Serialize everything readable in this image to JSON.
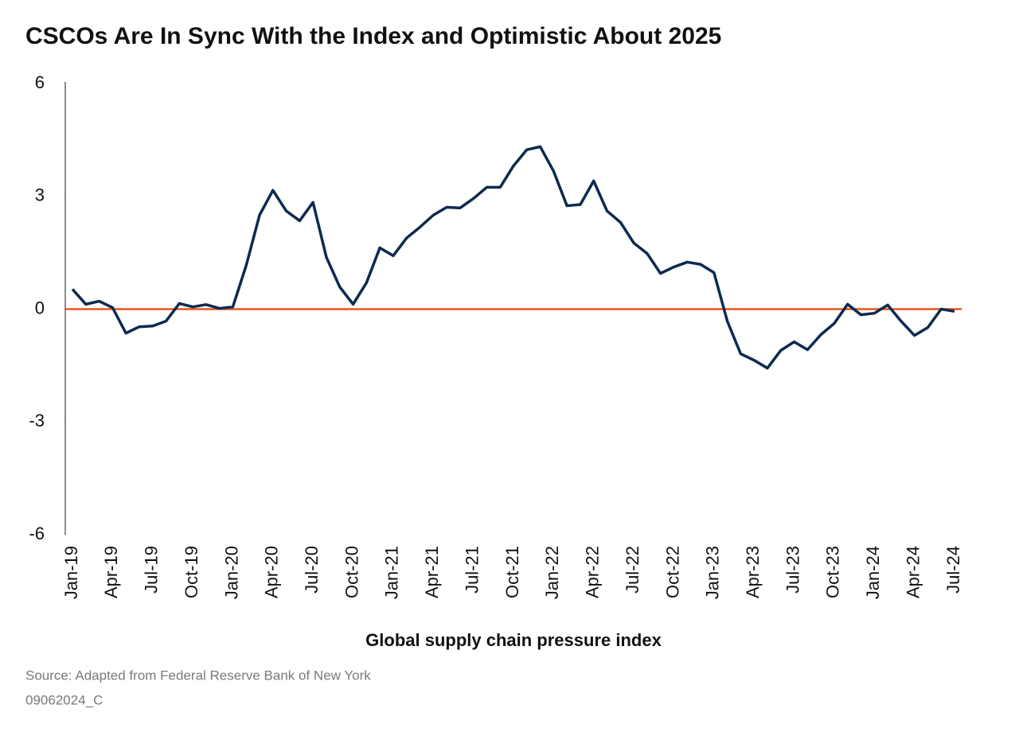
{
  "chart_data": {
    "type": "line",
    "title": "CSCOs Are In Sync With the Index and Optimistic About 2025",
    "x_label": "Global supply chain pressure index",
    "source": "Source: Adapted from Federal Reserve Bank of New York",
    "code": "09062024_C",
    "categories": [
      "Jan-19",
      null,
      null,
      "Apr-19",
      null,
      null,
      "Jul-19",
      null,
      null,
      "Oct-19",
      null,
      null,
      "Jan-20",
      null,
      null,
      "Apr-20",
      null,
      null,
      "Jul-20",
      null,
      null,
      "Oct-20",
      null,
      null,
      "Jan-21",
      null,
      null,
      "Apr-21",
      null,
      null,
      "Jul-21",
      null,
      null,
      "Oct-21",
      null,
      null,
      "Jan-22",
      null,
      null,
      "Apr-22",
      null,
      null,
      "Jul-22",
      null,
      null,
      "Oct-22",
      null,
      null,
      "Jan-23",
      null,
      null,
      "Apr-23",
      null,
      null,
      "Jul-23",
      null,
      null,
      "Oct-23",
      null,
      null,
      "Jan-24",
      null,
      null,
      "Apr-24",
      null,
      null,
      "Jul-24"
    ],
    "series": [
      {
        "name": "Global supply chain pressure index",
        "color": "#0d2a50",
        "values": [
          0.53,
          0.13,
          0.21,
          0.04,
          -0.64,
          -0.47,
          -0.45,
          -0.32,
          0.15,
          0.06,
          0.12,
          0.02,
          0.06,
          1.16,
          2.5,
          3.16,
          2.61,
          2.35,
          2.84,
          1.38,
          0.59,
          0.13,
          0.7,
          1.63,
          1.42,
          1.89,
          2.18,
          2.5,
          2.71,
          2.69,
          2.94,
          3.24,
          3.24,
          3.81,
          4.24,
          4.32,
          3.67,
          2.75,
          2.78,
          3.41,
          2.61,
          2.31,
          1.76,
          1.48,
          0.95,
          1.12,
          1.25,
          1.19,
          0.97,
          -0.32,
          -1.19,
          -1.36,
          -1.57,
          -1.1,
          -0.87,
          -1.08,
          -0.68,
          -0.38,
          0.13,
          -0.15,
          -0.11,
          0.11,
          -0.32,
          -0.7,
          -0.49,
          0.0,
          -0.06
        ]
      }
    ],
    "reference_line": {
      "value": 0,
      "color": "#e8561f"
    },
    "ylim": [
      -6,
      6
    ],
    "yticks": [
      6,
      3,
      0,
      -3,
      -6
    ],
    "grid": false
  }
}
